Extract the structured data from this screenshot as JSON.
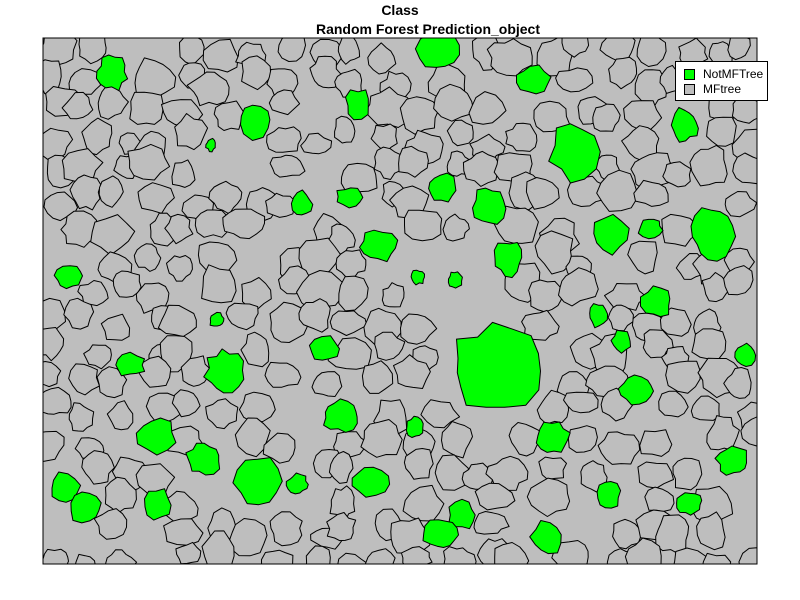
{
  "title": "Class",
  "subtitle": "Random Forest Prediction_object",
  "colors": {
    "background": "#bebebe",
    "frame": "#000000",
    "not_mf_tree": "#00ff00",
    "mf_tree": "#bebebe"
  },
  "legend": {
    "items": [
      {
        "label": "NotMFTree",
        "color": "#00ff00"
      },
      {
        "label": "MFtree",
        "color": "#bebebe"
      }
    ]
  }
}
